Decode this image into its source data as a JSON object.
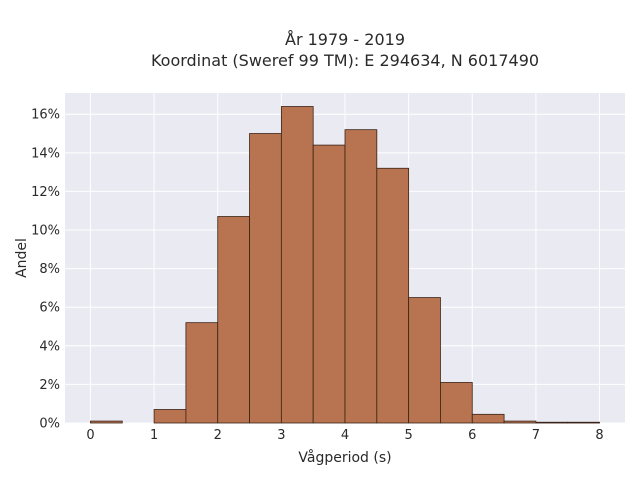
{
  "chart_data": {
    "type": "bar",
    "title_line1": "År 1979 - 2019",
    "title_line2": "Koordinat (Sweref 99 TM): E 294634, N 6017490",
    "xlabel": "Vågperiod (s)",
    "ylabel": "Andel",
    "xlim": [
      -0.4,
      8.4
    ],
    "ylim": [
      0,
      17.1
    ],
    "x_ticks": [
      0,
      1,
      2,
      3,
      4,
      5,
      6,
      7,
      8
    ],
    "x_tick_labels": [
      "0",
      "1",
      "2",
      "3",
      "4",
      "5",
      "6",
      "7",
      "8"
    ],
    "y_ticks": [
      0,
      2,
      4,
      6,
      8,
      10,
      12,
      14,
      16
    ],
    "y_tick_labels": [
      "0%",
      "2%",
      "4%",
      "6%",
      "8%",
      "10%",
      "12%",
      "14%",
      "16%"
    ],
    "bin_width": 0.5,
    "bin_starts": [
      0,
      0.5,
      1,
      1.5,
      2,
      2.5,
      3,
      3.5,
      4,
      4.5,
      5,
      5.5,
      6,
      6.5,
      7,
      7.5
    ],
    "values": [
      0.1,
      0,
      0.7,
      5.2,
      10.7,
      15.0,
      16.4,
      14.4,
      15.2,
      13.2,
      6.5,
      2.1,
      0.45,
      0.1,
      0.04,
      0.04
    ],
    "bar_color": "#b87350",
    "bar_edge_color": "#3a2418",
    "plot_background": "#eaeaf2",
    "grid": true,
    "grid_color": "#ffffff"
  }
}
